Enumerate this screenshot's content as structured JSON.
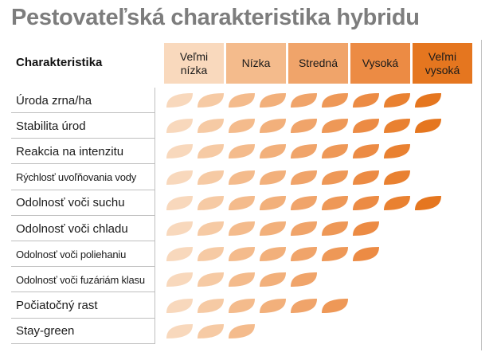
{
  "title": "Pestovateľská charakteristika hybridu",
  "header": {
    "label": "Charakteristika"
  },
  "levels": [
    {
      "label": "Veľmi\nnízka",
      "color": "#f9d9bd"
    },
    {
      "label": "Nízka",
      "color": "#f4bb8c"
    },
    {
      "label": "Stredná",
      "color": "#f0a46a"
    },
    {
      "label": "Vysoká",
      "color": "#ec8b44"
    },
    {
      "label": "Veľmi\nvysoká",
      "color": "#e5761f"
    }
  ],
  "leaf_colors": [
    "#f8d8bc",
    "#f6caa4",
    "#f4bb8c",
    "#f2b07b",
    "#f0a46a",
    "#ee9857",
    "#ec8b44",
    "#e98131",
    "#e5761f"
  ],
  "rows": [
    {
      "label": "Úroda zrna/ha",
      "value": 9,
      "small": false
    },
    {
      "label": "Stabilita úrod",
      "value": 9,
      "small": false
    },
    {
      "label": "Reakcia na intenzitu",
      "value": 8,
      "small": false
    },
    {
      "label": "Rýchlosť uvoľňovania vody",
      "value": 8,
      "small": true
    },
    {
      "label": "Odolnosť voči suchu",
      "value": 9,
      "small": false
    },
    {
      "label": "Odolnosť voči chladu",
      "value": 7,
      "small": false
    },
    {
      "label": "Odolnosť voči poliehaniu",
      "value": 7,
      "small": true
    },
    {
      "label": "Odolnosť voči fuzáriám klasu",
      "value": 5,
      "small": true
    },
    {
      "label": "Počiatočný rast",
      "value": 6,
      "small": false
    },
    {
      "label": "Stay-green",
      "value": 3,
      "small": false
    }
  ]
}
